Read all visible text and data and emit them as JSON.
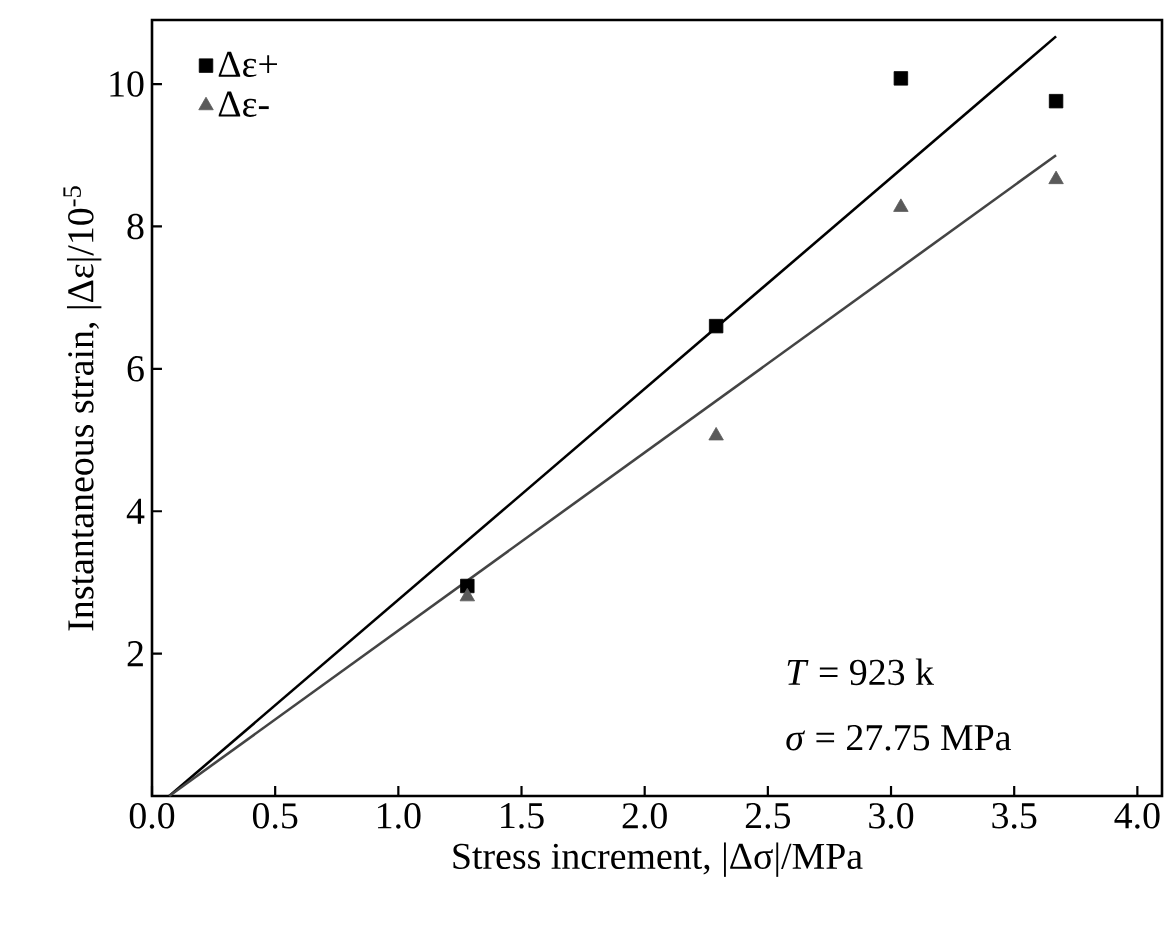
{
  "chart_data": {
    "type": "scatter",
    "xlabel": "Stress increment, |Δσ|/MPa",
    "ylabel": "Instantaneous strain, |Δε|/10$^{-5}$",
    "xlim": [
      0,
      4.1
    ],
    "ylim": [
      0,
      10.9
    ],
    "xticks": [
      {
        "value": 0,
        "label": "0.0"
      },
      {
        "value": 0.5,
        "label": "0.5"
      },
      {
        "value": 1,
        "label": "1.0"
      },
      {
        "value": 1.5,
        "label": "1.5"
      },
      {
        "value": 2,
        "label": "2.0"
      },
      {
        "value": 2.5,
        "label": "2.5"
      },
      {
        "value": 3,
        "label": "3.0"
      },
      {
        "value": 3.5,
        "label": "3.5"
      },
      {
        "value": 4,
        "label": "4.0"
      }
    ],
    "yticks": [
      2,
      4,
      6,
      8,
      10
    ],
    "legend": "top left",
    "annotations": [
      "*T* = 923 k",
      "*σ* = 27.75 MPa"
    ],
    "series": [
      {
        "name": "Δε+",
        "marker": "square",
        "color": "#000000",
        "x": [
          1.28,
          2.29,
          3.04,
          3.67
        ],
        "values": [
          2.95,
          6.6,
          10.08,
          9.76
        ]
      },
      {
        "name": "Δε-",
        "marker": "triangle",
        "color": "#5a5a5a",
        "x": [
          1.28,
          2.29,
          3.04,
          3.67
        ],
        "values": [
          2.8,
          5.06,
          8.27,
          8.66
        ]
      },
      {
        "type": "line",
        "marker": "none",
        "color": "#000000",
        "x": [
          0.07,
          3.67
        ],
        "values": [
          0,
          10.67
        ]
      },
      {
        "type": "line",
        "marker": "none",
        "color": "#444444",
        "x": [
          0.07,
          3.67
        ],
        "values": [
          0,
          9.0
        ]
      }
    ]
  }
}
